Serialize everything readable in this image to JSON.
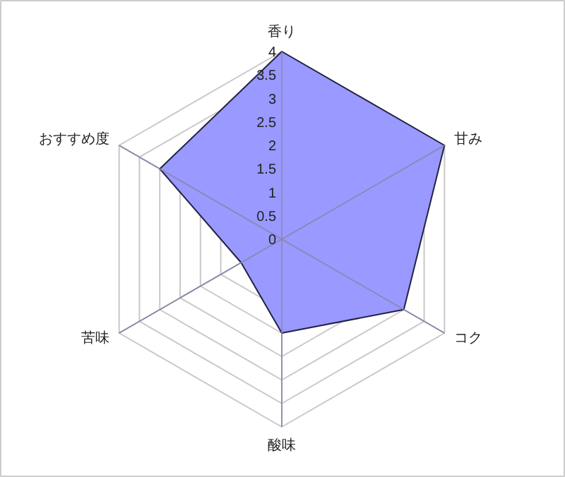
{
  "chart_data": {
    "type": "radar",
    "categories": [
      "香り",
      "甘み",
      "コク",
      "酸味",
      "苦味",
      "おすすめ度"
    ],
    "series": [
      {
        "color": "#9999ff",
        "values": [
          4,
          4,
          3,
          2,
          1,
          3
        ]
      }
    ],
    "ylim": [
      0,
      4
    ],
    "yticks": [
      0,
      0.5,
      1,
      1.5,
      2,
      2.5,
      3,
      3.5,
      4
    ],
    "grid": true
  }
}
